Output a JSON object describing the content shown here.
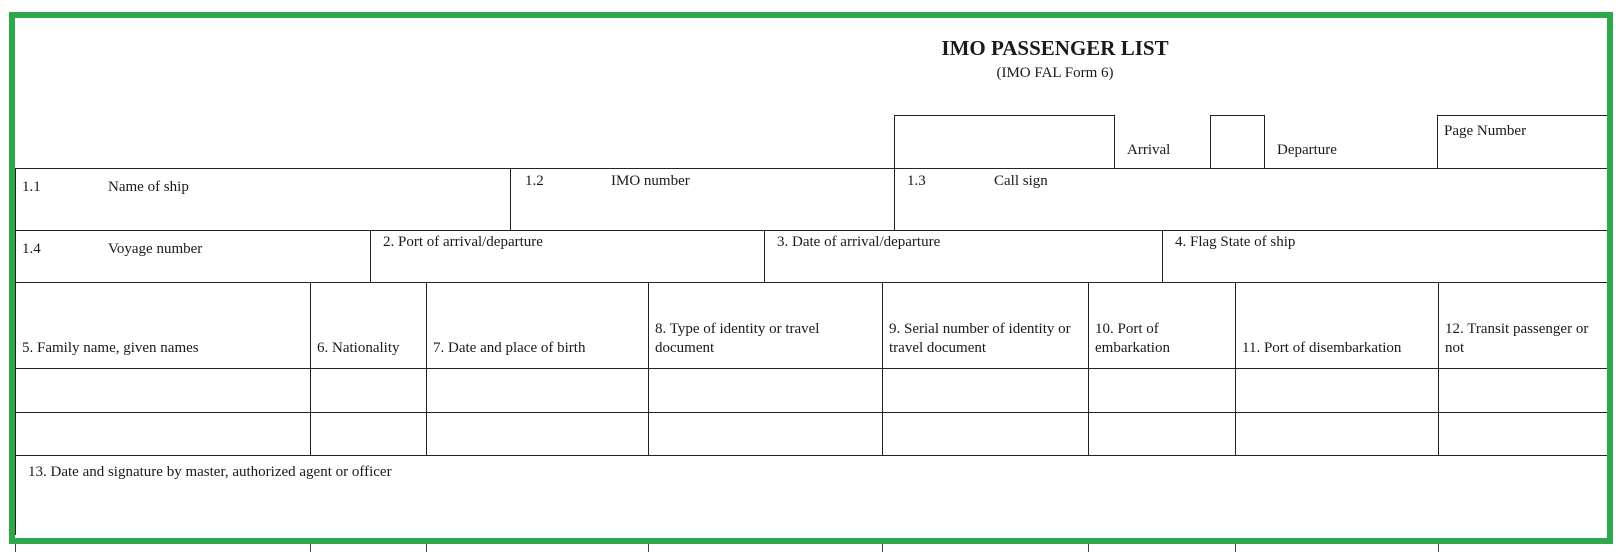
{
  "form": {
    "title": "IMO PASSENGER LIST",
    "subtitle": "(IMO FAL Form 6)",
    "arrival_label": "Arrival",
    "departure_label": "Departure",
    "page_number_label": "Page Number",
    "name_of_ship": {
      "num": "1.1",
      "label": "Name of ship"
    },
    "imo_number": {
      "num": "1.2",
      "label": "IMO number"
    },
    "call_sign": {
      "num": "1.3",
      "label": "Call sign"
    },
    "voyage_number": {
      "num": "1.4",
      "label": "Voyage number"
    },
    "port": "2.  Port of arrival/departure",
    "date": "3.  Date of arrival/departure",
    "flag": "4.  Flag State of ship",
    "columns": [
      "5. Family name, given names",
      "6. Nationality",
      "7.  Date and place of birth",
      "8. Type of identity or travel document",
      "9. Serial number of identity or travel document",
      "10. Port of embarkation",
      "11. Port of disembarkation",
      "12. Transit passenger or not"
    ],
    "signature": "13. Date and signature by master, authorized agent or officer"
  },
  "colors": {
    "frame": "#2ea84a"
  }
}
